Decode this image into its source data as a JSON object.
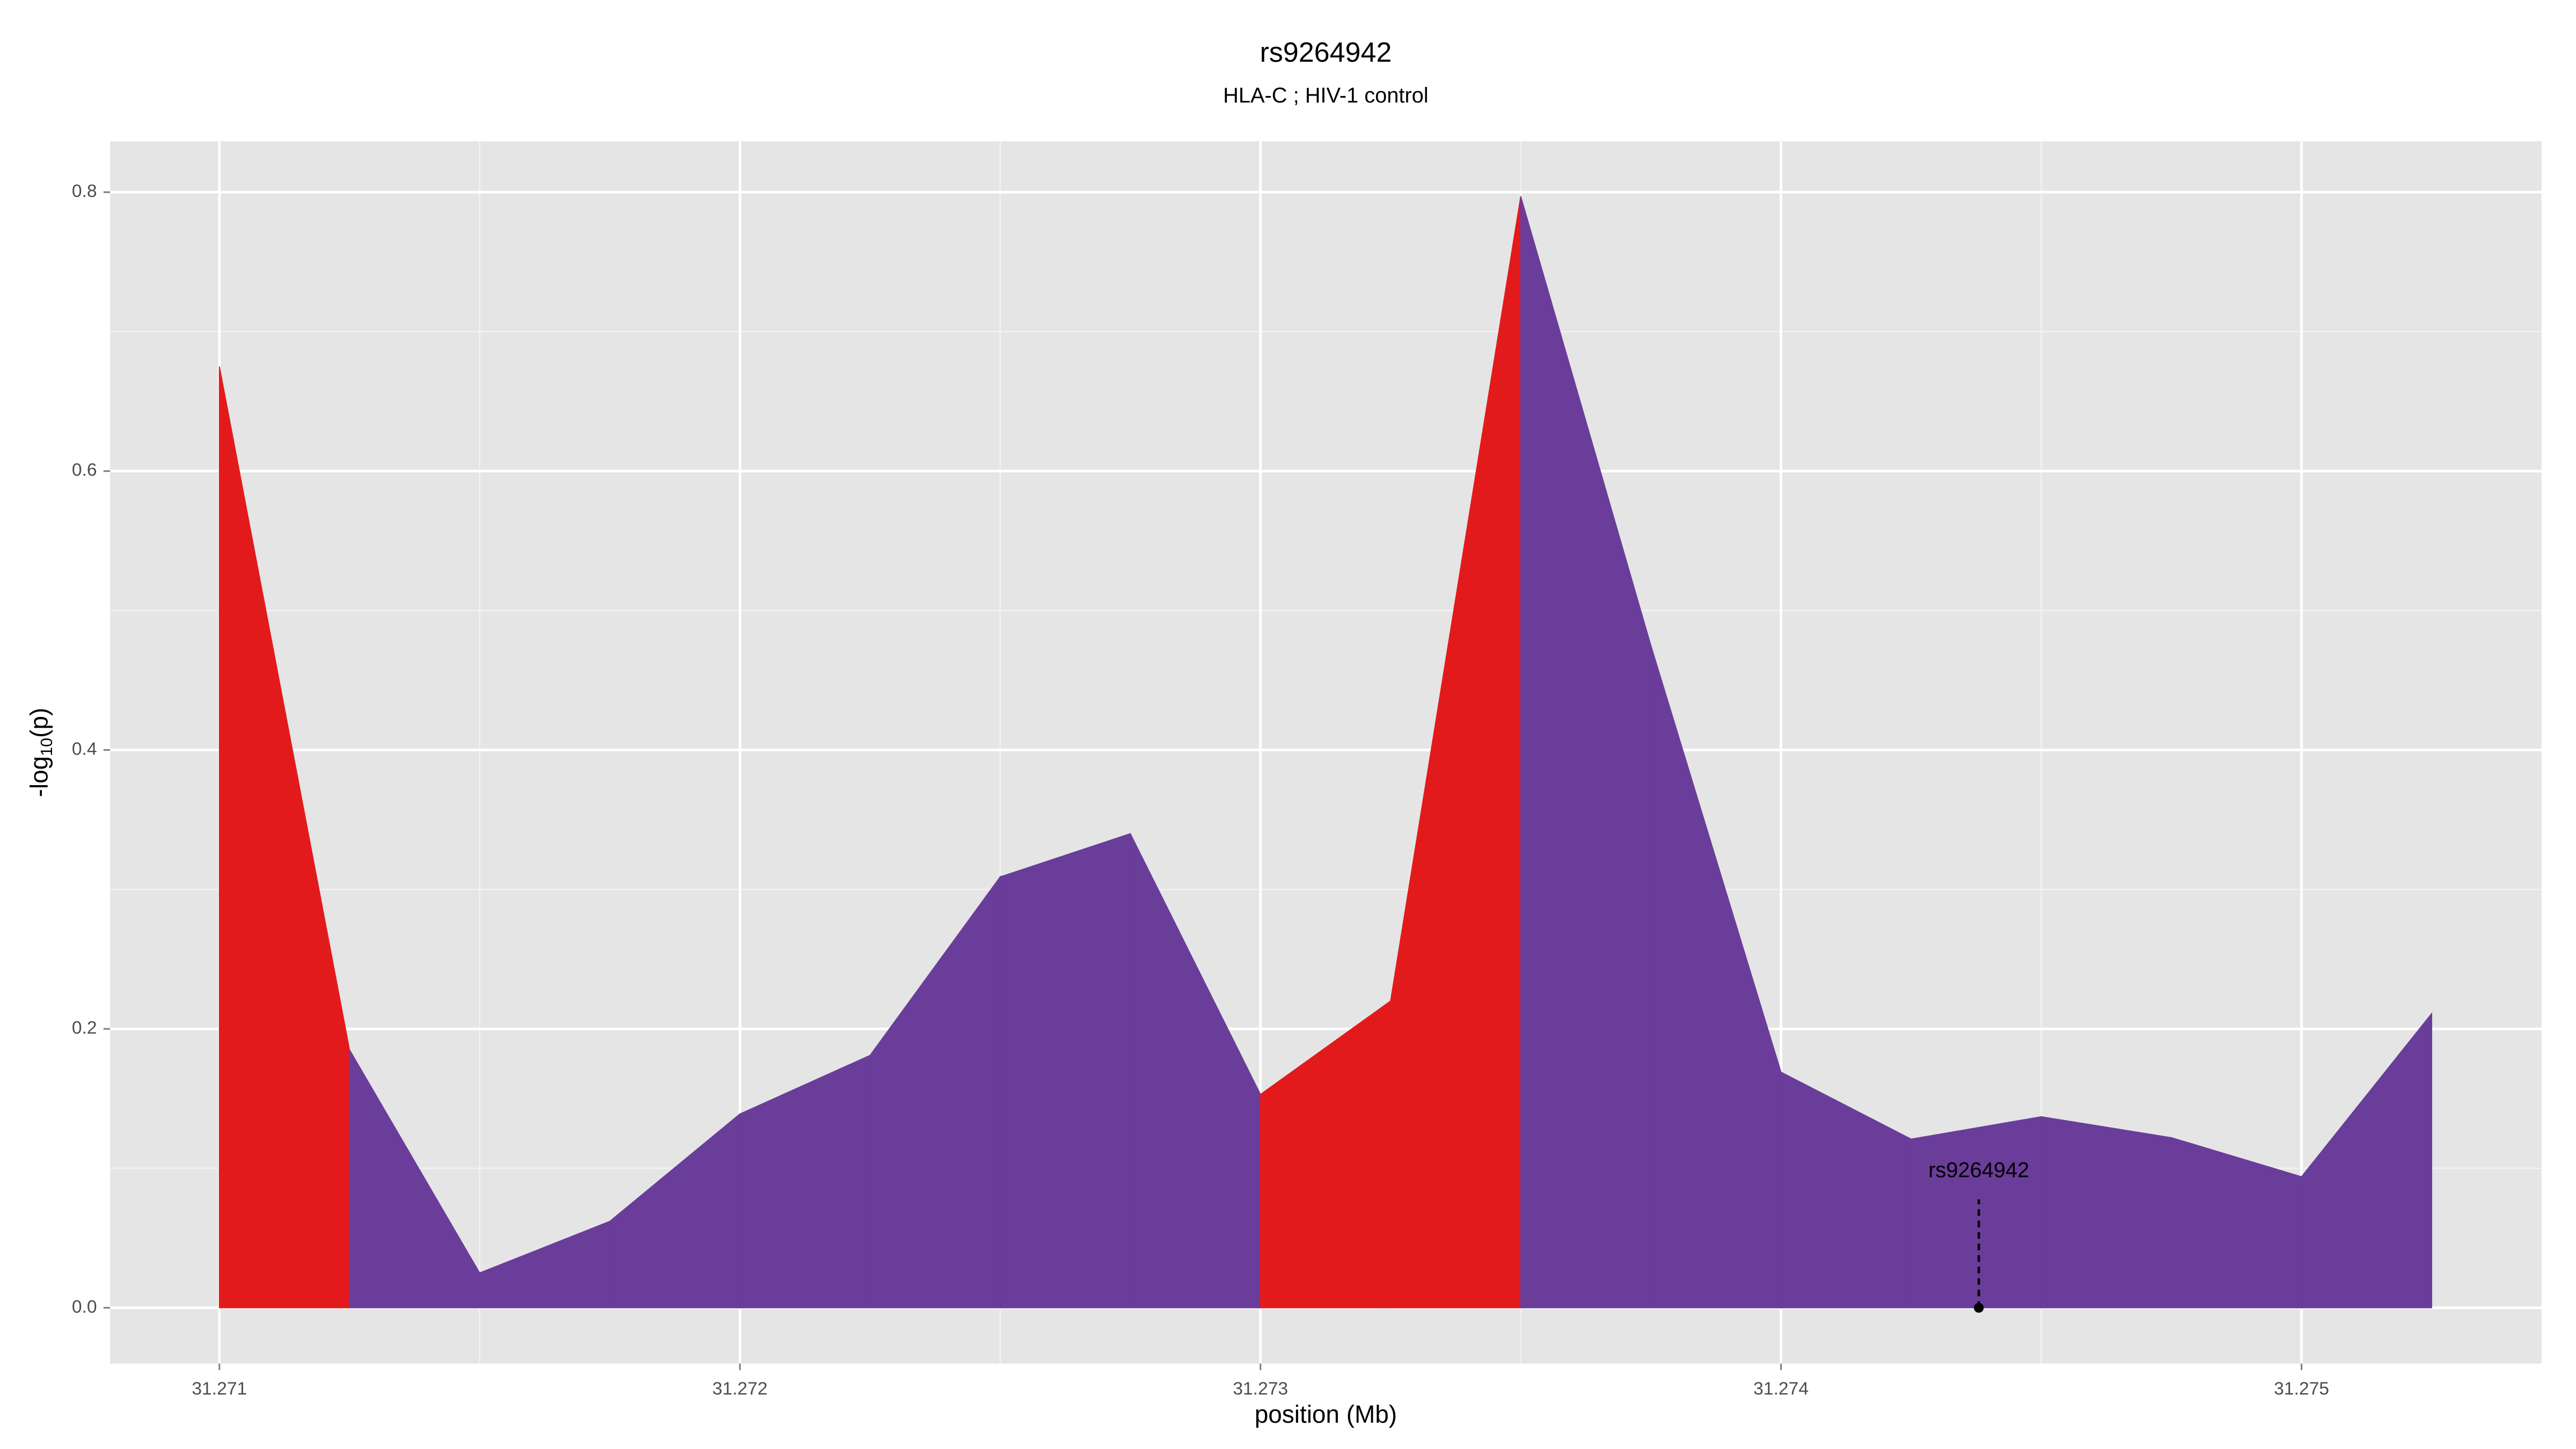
{
  "chart_data": {
    "type": "area",
    "title": "rs9264942",
    "subtitle": "HLA-C ; HIV-1 control",
    "xlabel": "position (Mb)",
    "ylabel": [
      "-log",
      "10",
      "(p)"
    ],
    "x": [
      31.271,
      31.27125,
      31.2715,
      31.27175,
      31.272,
      31.27225,
      31.2725,
      31.27275,
      31.273,
      31.27325,
      31.2735,
      31.27375,
      31.274,
      31.27425,
      31.2745,
      31.27475,
      31.275,
      31.27525
    ],
    "values": [
      0.675,
      0.185,
      0.025,
      0.062,
      0.139,
      0.181,
      0.309,
      0.34,
      0.153,
      0.22,
      0.797,
      0.475,
      0.169,
      0.121,
      0.137,
      0.122,
      0.094,
      0.211
    ],
    "segment_colors": [
      "#e31a1c",
      "#6a3d9a",
      "#6a3d9a",
      "#6a3d9a",
      "#6a3d9a",
      "#6a3d9a",
      "#6a3d9a",
      "#6a3d9a",
      "#e31a1c",
      "#e31a1c",
      "#6a3d9a",
      "#6a3d9a",
      "#6a3d9a",
      "#6a3d9a",
      "#6a3d9a",
      "#6a3d9a",
      "#6a3d9a"
    ],
    "annotation": {
      "text": "rs9264942",
      "x": 31.27438,
      "y": 0
    },
    "xlim": [
      31.27079,
      31.275461
    ],
    "ylim": [
      -0.04,
      0.8365
    ],
    "xticks": [
      31.271,
      31.272,
      31.273,
      31.274,
      31.275
    ],
    "yticks": [
      {
        "value": 0,
        "label": "0.0"
      },
      0.2,
      0.4,
      0.6,
      0.8
    ],
    "grid": true,
    "background": "#e5e5e5"
  }
}
